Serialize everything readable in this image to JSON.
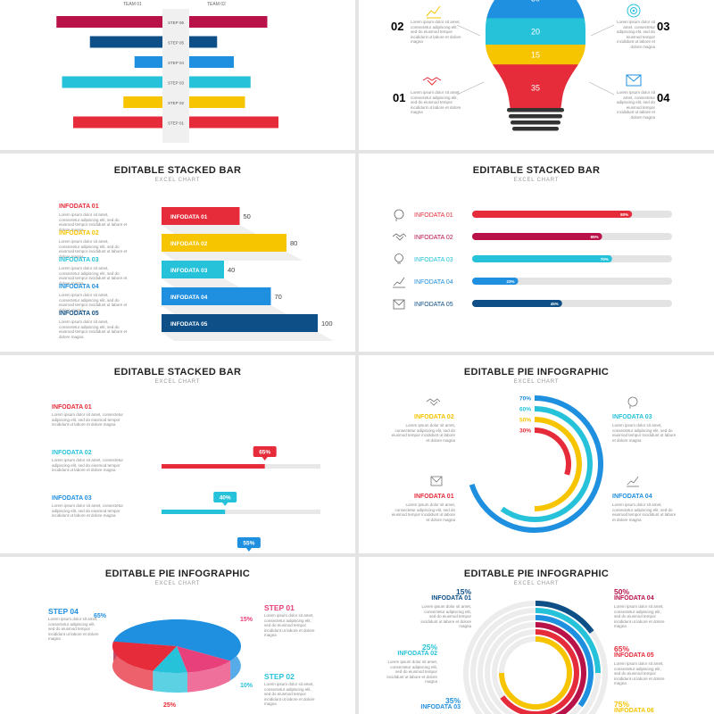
{
  "colors": {
    "red": "#e62c3a",
    "crimson": "#b81248",
    "navy": "#0d4f86",
    "sky": "#1f8fe0",
    "cyan": "#26c2d9",
    "yellow": "#f7c400",
    "grey": "#e6e6e6"
  },
  "common": {
    "lorem": "Lorem ipsum dolor sit amet, consectetur adipiscing elit, sed do eiusmod tempor incididunt ut labore et dolore magna"
  },
  "chart_data": [
    {
      "type": "bar",
      "panel": "butterfly",
      "title": "",
      "series": [
        {
          "name": "TEAM 01"
        },
        {
          "name": "TEAM 02"
        }
      ],
      "categories": [
        "STEP 06",
        "STEP 05",
        "STEP 04",
        "STEP 03",
        "STEP 02",
        "STEP 01"
      ],
      "team01": [
        95,
        65,
        25,
        90,
        35,
        80
      ],
      "team02": [
        70,
        25,
        40,
        55,
        50,
        80
      ],
      "colors": [
        "#b81248",
        "#0d4f86",
        "#1f8fe0",
        "#26c2d9",
        "#f7c400",
        "#e62c3a"
      ]
    },
    {
      "type": "bar",
      "panel": "bulb",
      "title": "",
      "values": [
        30,
        20,
        15,
        35
      ],
      "bands": [
        "#1f8fe0",
        "#26c2d9",
        "#f7c400",
        "#e62c3a"
      ],
      "callouts": [
        {
          "num": "02",
          "color": "#f7c400",
          "icon": "chart-growth-icon"
        },
        {
          "num": "03",
          "color": "#26c2d9",
          "icon": "target-icon"
        },
        {
          "num": "01",
          "color": "#e62c3a",
          "icon": "handshake-icon"
        },
        {
          "num": "04",
          "color": "#1f8fe0",
          "icon": "envelope-icon"
        }
      ]
    },
    {
      "type": "bar",
      "panel": "horizontal-3d",
      "title": "EDITABLE STACKED BAR",
      "subtitle": "EXCEL CHART",
      "categories": [
        "INFODATA 01",
        "INFODATA 02",
        "INFODATA 03",
        "INFODATA 04",
        "INFODATA 05"
      ],
      "values": [
        50,
        80,
        40,
        70,
        100
      ],
      "colors": [
        "#e62c3a",
        "#f7c400",
        "#26c2d9",
        "#1f8fe0",
        "#0d4f86"
      ]
    },
    {
      "type": "bar",
      "panel": "progress",
      "title": "EDITABLE STACKED BAR",
      "subtitle": "EXCEL CHART",
      "categories": [
        "INFODATA 01",
        "INFODATA 02",
        "INFODATA 03",
        "INFODATA 04",
        "INFODATA 05"
      ],
      "values": [
        80,
        65,
        70,
        23,
        45
      ],
      "labels": [
        "80%",
        "65%",
        "70%",
        "23%",
        "45%"
      ],
      "colors": [
        "#e62c3a",
        "#b81248",
        "#26c2d9",
        "#1f8fe0",
        "#0d4f86"
      ],
      "icons": [
        "head-idea-icon",
        "handshake-icon",
        "bulb-icon",
        "chart-growth-icon",
        "envelope-icon"
      ]
    },
    {
      "type": "bar",
      "panel": "slider",
      "title": "EDITABLE STACKED BAR",
      "subtitle": "EXCEL CHART",
      "categories": [
        "INFODATA 01",
        "INFODATA 02",
        "INFODATA 03"
      ],
      "values": [
        65,
        40,
        55
      ],
      "labels": [
        "65%",
        "40%",
        "55%"
      ],
      "colors": [
        "#e62c3a",
        "#26c2d9",
        "#1f8fe0"
      ]
    },
    {
      "type": "pie",
      "panel": "radial",
      "title": "EDITABLE PIE INFOGRAPHIC",
      "subtitle": "EXCEL CHART",
      "values": [
        70,
        60,
        50,
        30
      ],
      "labels": [
        "70%",
        "60%",
        "50%",
        "30%"
      ],
      "colors": [
        "#1f8fe0",
        "#26c2d9",
        "#f7c400",
        "#e62c3a"
      ],
      "callouts": [
        {
          "label": "INFODATA 02",
          "color": "#f7c400",
          "icon": "handshake-icon"
        },
        {
          "label": "INFODATA 03",
          "color": "#26c2d9",
          "icon": "head-idea-icon"
        },
        {
          "label": "INFODATA 01",
          "color": "#e62c3a",
          "icon": "envelope-icon"
        },
        {
          "label": "INFODATA 04",
          "color": "#1f8fe0",
          "icon": "chart-growth-icon"
        }
      ]
    },
    {
      "type": "pie",
      "panel": "pie-3d",
      "title": "EDITABLE PIE INFOGRAPHIC",
      "subtitle": "EXCEL CHART",
      "slices": [
        {
          "label": "STEP 04",
          "value": 65,
          "pct": "65%",
          "color": "#1f8fe0"
        },
        {
          "label": "STEP 01",
          "value": 15,
          "pct": "15%",
          "color": "#e8407a"
        },
        {
          "label": "STEP 02",
          "value": 10,
          "pct": "10%",
          "color": "#26c2d9"
        },
        {
          "label": "",
          "value": 25,
          "pct": "25%",
          "color": "#e62c3a"
        }
      ]
    },
    {
      "type": "pie",
      "panel": "rings",
      "title": "EDITABLE PIE INFOGRAPHIC",
      "subtitle": "EXCEL CHART",
      "items": [
        {
          "label": "INFODATA 01",
          "value": 15,
          "pct": "15%",
          "color": "#0d4f86"
        },
        {
          "label": "INFODATA 02",
          "value": 25,
          "pct": "25%",
          "color": "#26c2d9"
        },
        {
          "label": "INFODATA 03",
          "value": 35,
          "pct": "35%",
          "color": "#1f8fe0"
        },
        {
          "label": "INFODATA 04",
          "value": 50,
          "pct": "50%",
          "color": "#b81248"
        },
        {
          "label": "INFODATA 05",
          "value": 65,
          "pct": "65%",
          "color": "#e62c3a"
        },
        {
          "label": "INFODATA 06",
          "value": 75,
          "pct": "75%",
          "color": "#f7c400"
        }
      ]
    }
  ]
}
